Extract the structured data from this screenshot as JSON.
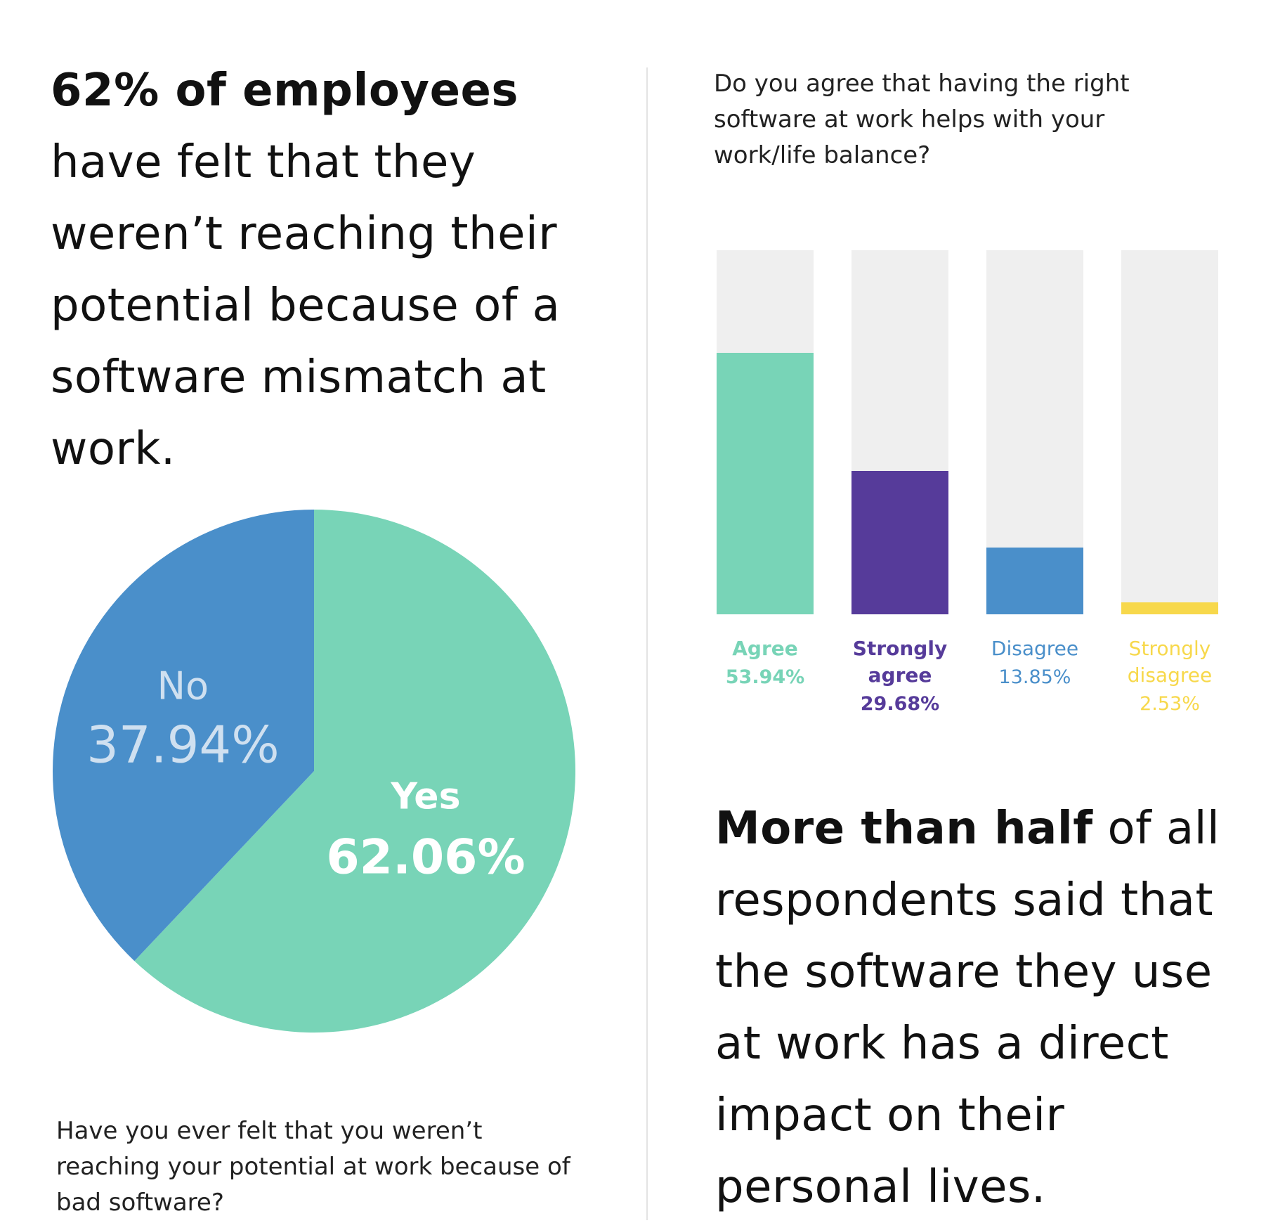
{
  "left": {
    "headline_bold": "62% of employees",
    "headline_rest": " have felt that they weren’t reaching their potential because of a software mismatch at work.",
    "question": "Have you ever felt that you weren’t reaching your potential at work because of bad software?"
  },
  "right": {
    "question": "Do you agree that having the right software at work helps with your work/life balance?",
    "headline_bold": "More than half",
    "headline_rest": " of all respondents said that the software they use at work has a direct impact on their personal lives."
  },
  "chart_data": [
    {
      "type": "pie",
      "slices": [
        {
          "label": "Yes",
          "value": 62.06,
          "value_text": "62.06%",
          "color": "#78d4b7",
          "text_color": "#ffffff"
        },
        {
          "label": "No",
          "value": 37.94,
          "value_text": "37.94%",
          "color": "#4a8fca",
          "text_color": "#cfe0f0"
        }
      ],
      "start": "12 o'clock, clockwise"
    },
    {
      "type": "bar",
      "categories": [
        "Agree",
        "Strongly agree",
        "Disagree",
        "Strongly disagree"
      ],
      "values": [
        53.94,
        29.68,
        13.85,
        2.53
      ],
      "value_labels": [
        "53.94%",
        "29.68%",
        "13.85%",
        "2.53%"
      ],
      "colors": [
        "#78d4b7",
        "#563b9a",
        "#4a8fca",
        "#f7d84b"
      ],
      "track_color": "#efefef",
      "ylim": [
        0,
        54
      ],
      "grid": false
    }
  ]
}
